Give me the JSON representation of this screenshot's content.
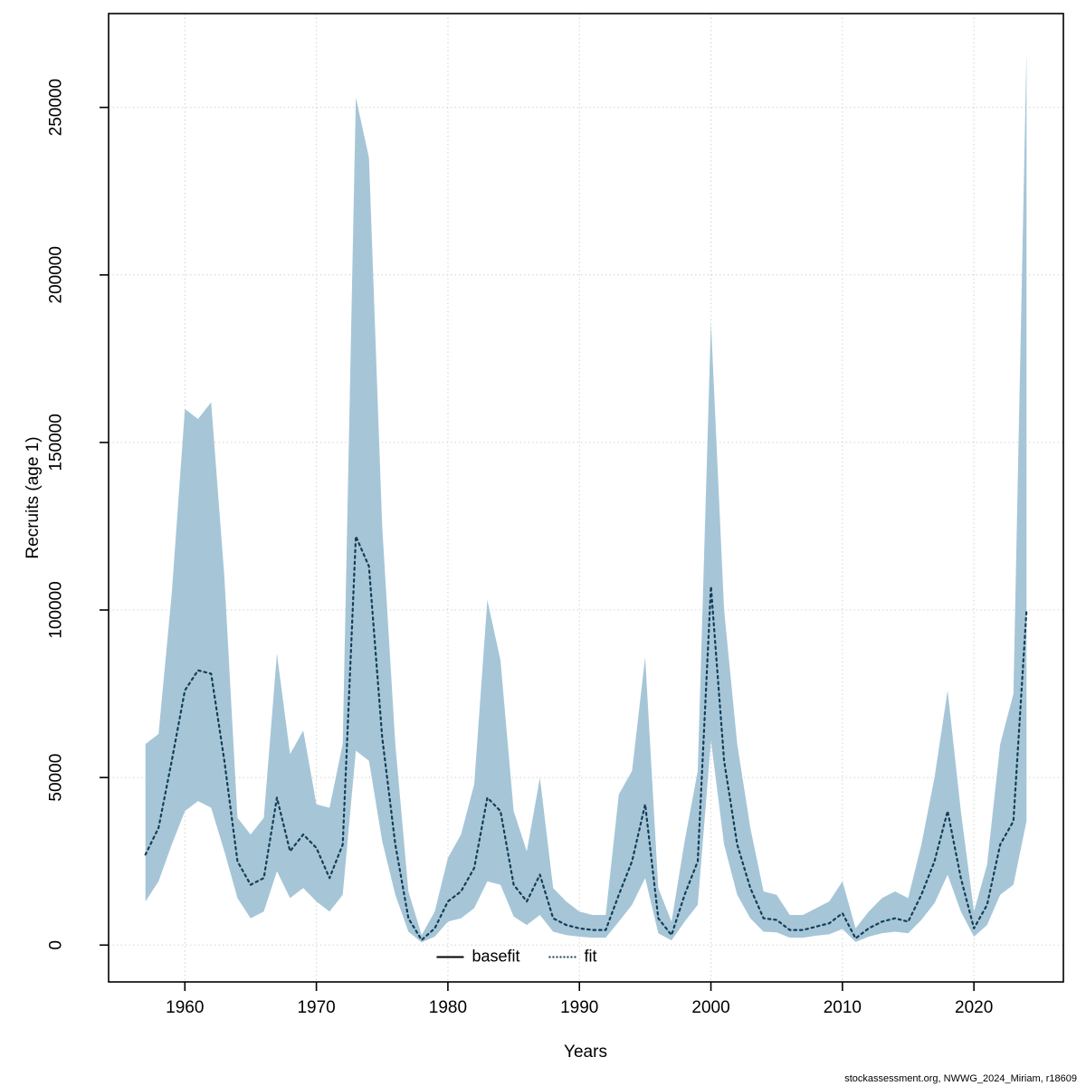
{
  "chart_data": {
    "type": "area",
    "title": "",
    "xlabel": "Years",
    "ylabel": "Recruits (age 1)",
    "x_ticks": [
      1960,
      1970,
      1980,
      1990,
      2000,
      2010,
      2020
    ],
    "y_ticks": [
      0,
      50000,
      100000,
      150000,
      200000,
      250000
    ],
    "xlim": [
      1954.2,
      2026.8
    ],
    "ylim": [
      -11000,
      278000
    ],
    "grid": true,
    "grid_color": "#d3d3d3",
    "band_color": "#a6c6d8",
    "line_color": "#143e56",
    "legend_position": "bottom-center-inside",
    "legend": [
      {
        "label": "basefit",
        "style": "solid",
        "color": "#000000"
      },
      {
        "label": "fit",
        "style": "dotted",
        "color": "#143e56"
      }
    ],
    "years": [
      1957,
      1958,
      1959,
      1960,
      1961,
      1962,
      1963,
      1964,
      1965,
      1966,
      1967,
      1968,
      1969,
      1970,
      1971,
      1972,
      1973,
      1974,
      1975,
      1976,
      1977,
      1978,
      1979,
      1980,
      1981,
      1982,
      1983,
      1984,
      1985,
      1986,
      1987,
      1988,
      1989,
      1990,
      1991,
      1992,
      1993,
      1994,
      1995,
      1996,
      1997,
      1998,
      1999,
      2000,
      2001,
      2002,
      2003,
      2004,
      2005,
      2006,
      2007,
      2008,
      2009,
      2010,
      2011,
      2012,
      2013,
      2014,
      2015,
      2016,
      2017,
      2018,
      2019,
      2020,
      2021,
      2022,
      2023,
      2024
    ],
    "fit": [
      27000,
      35000,
      55000,
      76000,
      82000,
      81000,
      55000,
      25000,
      18000,
      20000,
      44000,
      28000,
      33000,
      29000,
      20000,
      30000,
      122000,
      113000,
      62000,
      30000,
      8000,
      1500,
      5000,
      13000,
      16000,
      23000,
      44000,
      40000,
      18000,
      13000,
      21000,
      8000,
      6000,
      5000,
      4500,
      4500,
      15000,
      25000,
      42000,
      8000,
      3000,
      15000,
      25000,
      107000,
      55000,
      30000,
      17000,
      8000,
      7500,
      4500,
      4500,
      5500,
      6500,
      9500,
      2000,
      5000,
      7000,
      8000,
      7000,
      15000,
      25000,
      40000,
      20000,
      5000,
      12000,
      30000,
      37000,
      100000
    ],
    "lower": [
      13000,
      19000,
      30000,
      40000,
      43000,
      41000,
      28000,
      14000,
      8000,
      10000,
      22000,
      14000,
      17000,
      13000,
      10000,
      15000,
      58000,
      55000,
      31000,
      15000,
      4000,
      800,
      2500,
      7000,
      8000,
      11000,
      19000,
      18000,
      8500,
      6000,
      9000,
      4000,
      3000,
      2500,
      2200,
      2200,
      7000,
      12000,
      20000,
      3500,
      1400,
      7000,
      12000,
      61000,
      30000,
      15000,
      8000,
      4000,
      3800,
      2200,
      2200,
      2800,
      3200,
      4800,
      900,
      2500,
      3500,
      4000,
      3500,
      7500,
      12500,
      21000,
      10000,
      2500,
      6000,
      15000,
      18000,
      37000
    ],
    "upper": [
      60000,
      63000,
      105000,
      160000,
      157000,
      162000,
      110000,
      38000,
      33000,
      38000,
      87000,
      57000,
      64000,
      42000,
      41000,
      60000,
      253000,
      235000,
      125000,
      60000,
      16000,
      3000,
      10000,
      26000,
      33000,
      48000,
      103000,
      85000,
      40000,
      28000,
      50000,
      17000,
      13000,
      10000,
      9000,
      9000,
      45000,
      52000,
      86000,
      17000,
      7000,
      31000,
      52000,
      186000,
      100000,
      60000,
      35000,
      16000,
      15000,
      9000,
      9000,
      11000,
      13000,
      19000,
      5000,
      10000,
      14000,
      16000,
      14000,
      30000,
      50000,
      76000,
      40000,
      10000,
      24000,
      60000,
      75000,
      267000
    ]
  },
  "footer": {
    "credit": "stockassessment.org, NWWG_2024_Miriam, r18609"
  }
}
